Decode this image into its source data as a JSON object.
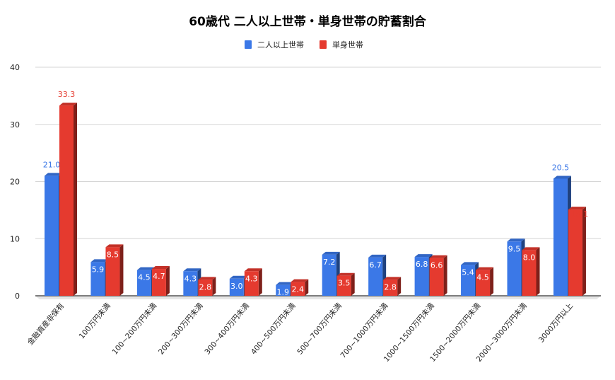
{
  "chart_data": {
    "type": "bar",
    "title": "60歳代 二人以上世帯・単身世帯の貯蓄割合",
    "categories": [
      "金融資産非保有",
      "100万円未満",
      "100~200万円未満",
      "200~300万円未満",
      "300~400万円未満",
      "400~500万円未満",
      "500~700万円未満",
      "700~1000万円未満",
      "1000~1500万円未満",
      "1500~2000万円未満",
      "2000~3000万円未満",
      "3000万円以上"
    ],
    "series": [
      {
        "name": "二人以上世帯",
        "color": "#3b78e7",
        "values": [
          21.0,
          5.9,
          4.5,
          4.3,
          3.0,
          1.9,
          7.2,
          6.7,
          6.8,
          5.4,
          9.5,
          20.5
        ]
      },
      {
        "name": "単身世帯",
        "color": "#e53a2f",
        "values": [
          33.3,
          8.5,
          4.7,
          2.8,
          4.3,
          2.4,
          3.5,
          2.8,
          6.6,
          4.5,
          8.0,
          15.1
        ]
      }
    ],
    "yticks": [
      0,
      10,
      20,
      30,
      40
    ],
    "ylim": [
      0,
      40
    ],
    "grid": true,
    "legend_position": "top",
    "style": "3d-bar"
  }
}
